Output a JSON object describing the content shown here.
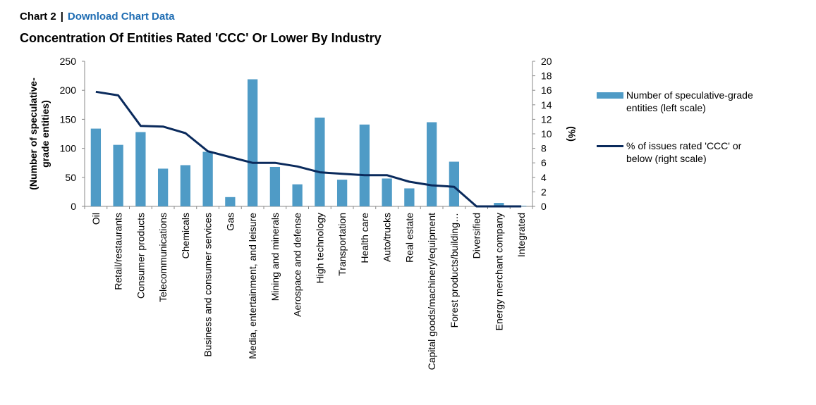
{
  "header": {
    "chart_label": "Chart 2",
    "separator": "|",
    "link_text": "Download Chart Data"
  },
  "title": "Concentration Of Entities Rated 'CCC' Or Lower By Industry",
  "legend": {
    "bar_label": "Number of speculative-grade entities (left scale)",
    "line_label": "% of issues rated 'CCC' or below (right scale)"
  },
  "colors": {
    "bar": "#4f9bc6",
    "line": "#0a2a5c",
    "link": "#1f6db3"
  },
  "chart_data": {
    "type": "bar",
    "categories": [
      "Oil",
      "Retail/restaurants",
      "Consumer products",
      "Telecommunications",
      "Chemicals",
      "Business and consumer services",
      "Gas",
      "Media, entertainment, and leisure",
      "Mining and minerals",
      "Aerospace and defense",
      "High technology",
      "Transportation",
      "Health care",
      "Auto/trucks",
      "Real estate",
      "Capital goods/machinery/equipment",
      "Forest products/building…",
      "Diversified",
      "Energy merchant company",
      "Integrated"
    ],
    "series": [
      {
        "name": "Number of speculative-grade entities (left scale)",
        "kind": "bar",
        "axis": "left",
        "values": [
          134,
          106,
          128,
          65,
          71,
          94,
          16,
          219,
          68,
          38,
          153,
          46,
          141,
          48,
          31,
          145,
          77,
          0,
          6,
          1
        ]
      },
      {
        "name": "% of issues rated 'CCC' or below (right scale)",
        "kind": "line",
        "axis": "right",
        "values": [
          15.8,
          15.3,
          11.1,
          11.0,
          10.1,
          7.6,
          6.8,
          6.0,
          6.0,
          5.5,
          4.7,
          4.5,
          4.3,
          4.3,
          3.4,
          2.9,
          2.7,
          0,
          0,
          0
        ]
      }
    ],
    "ylabel_left": "(Number of speculative-grade entities)",
    "ylabel_right": "(%)",
    "ylim_left": [
      0,
      250
    ],
    "ylim_right": [
      0,
      20
    ],
    "yticks_left": [
      0,
      50,
      100,
      150,
      200,
      250
    ],
    "yticks_right": [
      0,
      2,
      4,
      6,
      8,
      10,
      12,
      14,
      16,
      18,
      20
    ],
    "grid": false,
    "legend_position": "right"
  }
}
